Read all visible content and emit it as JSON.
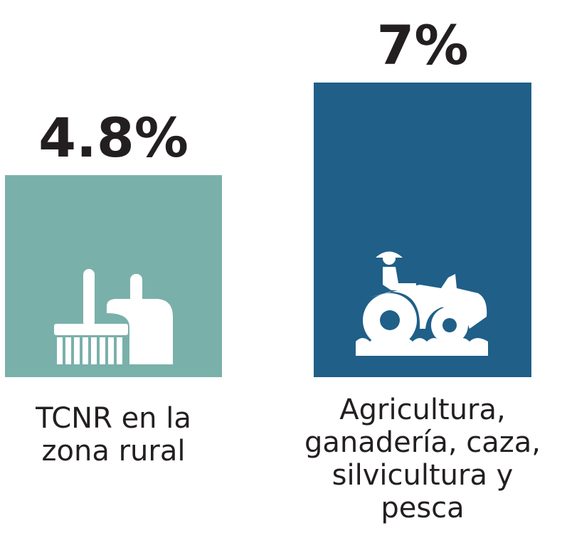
{
  "chart_data": {
    "type": "bar",
    "categories": [
      "TCNR en la zona rural",
      "Agricultura, ganadería, caza, silvicultura y pesca"
    ],
    "values": [
      4.8,
      7
    ],
    "value_labels": [
      "4.8%",
      "7%"
    ],
    "colors": [
      "#7ab0aa",
      "#1f5f88"
    ]
  }
}
